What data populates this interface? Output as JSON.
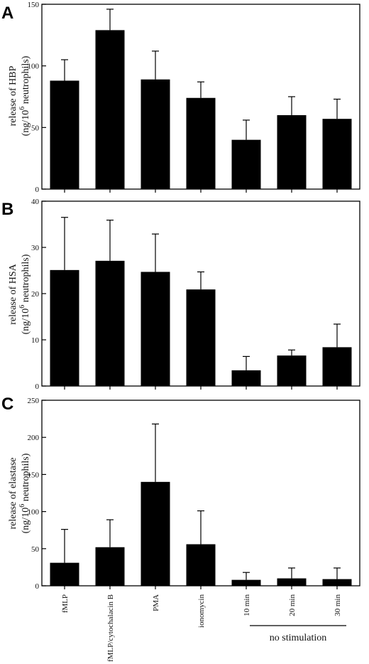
{
  "panels": [
    {
      "label": "A",
      "ylabel_line1": "release of HBP",
      "ylabel_line2_prefix": "(ng/10",
      "ylabel_line2_sup": "6",
      "ylabel_line2_suffix": " neutrophils)"
    },
    {
      "label": "B",
      "ylabel_line1": "release of HSA",
      "ylabel_line2_prefix": "(ng/10",
      "ylabel_line2_sup": "6",
      "ylabel_line2_suffix": " neutrophils)"
    },
    {
      "label": "C",
      "ylabel_line1": "release of elastase",
      "ylabel_line2_prefix": "(ng/10",
      "ylabel_line2_sup": "6",
      "ylabel_line2_suffix": " neutrophils)"
    }
  ],
  "group_label": "no stimulation",
  "chart_data": [
    {
      "type": "bar",
      "categories": [
        "fMLP",
        "fMLP/cytochalacin B",
        "PMA",
        "ionomycin",
        "10 min",
        "20 min",
        "30 min"
      ],
      "values": [
        88,
        129,
        89,
        74,
        40,
        60,
        57
      ],
      "errors": [
        17,
        17,
        23,
        13,
        16,
        15,
        16
      ],
      "ylabel": "release of HBP (ng/10^6 neutrophils)",
      "ylim": [
        0,
        150
      ],
      "yticks": [
        0,
        50,
        100,
        150
      ],
      "grid": false
    },
    {
      "type": "bar",
      "categories": [
        "fMLP",
        "fMLP/cytochalacin B",
        "PMA",
        "ionomycin",
        "10 min",
        "20 min",
        "30 min"
      ],
      "values": [
        25.1,
        27.1,
        24.7,
        20.9,
        3.4,
        6.6,
        8.4
      ],
      "errors": [
        11.4,
        8.8,
        8.2,
        3.8,
        3.0,
        1.2,
        5.0
      ],
      "ylabel": "release of HSA (ng/10^6 neutrophils)",
      "ylim": [
        0,
        40
      ],
      "yticks": [
        0,
        10,
        20,
        30,
        40
      ],
      "grid": false
    },
    {
      "type": "bar",
      "categories": [
        "fMLP",
        "fMLP/cytochalacin B",
        "PMA",
        "ionomycin",
        "10 min",
        "20 min",
        "30 min"
      ],
      "values": [
        31,
        52,
        140,
        56,
        8,
        10,
        9
      ],
      "errors": [
        45,
        37,
        78,
        45,
        10,
        14,
        15
      ],
      "ylabel": "release of elastase (ng/10^6 neutrophils)",
      "ylim": [
        0,
        250
      ],
      "yticks": [
        0,
        50,
        100,
        150,
        200,
        250
      ],
      "grid": false
    }
  ]
}
